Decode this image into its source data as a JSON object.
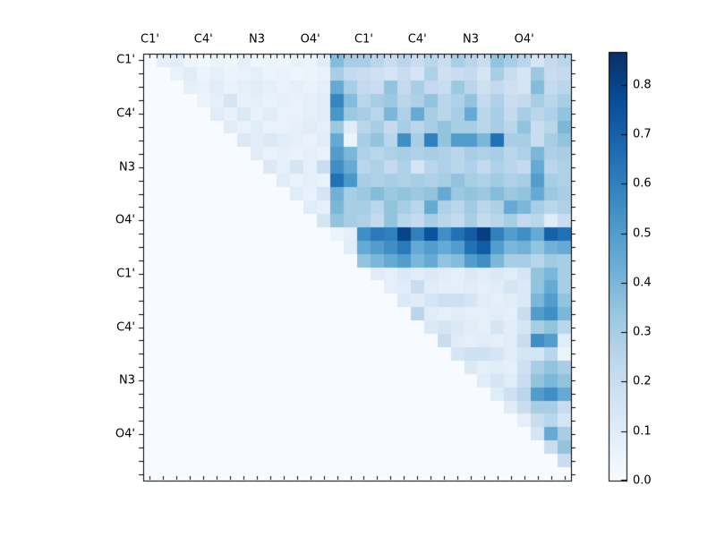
{
  "figure": {
    "background": "#ffffff"
  },
  "chart_data": {
    "type": "heatmap",
    "title": "",
    "xlabel": "",
    "ylabel": "",
    "colormap": "Blues",
    "grid": false,
    "size": 32,
    "triangular": "upper",
    "x_tick_labels": [
      "C1'",
      "C4'",
      "N3",
      "O4'",
      "C1'",
      "C4'",
      "N3",
      "O4'"
    ],
    "x_tick_cells": [
      0,
      4,
      8,
      12,
      16,
      20,
      24,
      28
    ],
    "y_tick_labels": [
      "C1'",
      "C4'",
      "N3",
      "O4'",
      "C1'",
      "C4'",
      "N3",
      "O4'"
    ],
    "y_tick_cells": [
      0,
      4,
      8,
      12,
      16,
      20,
      24,
      28
    ],
    "colorbar": {
      "min": 0.0,
      "max": 0.8666,
      "tick_values": [
        0.0,
        0.1,
        0.2,
        0.3,
        0.4,
        0.5,
        0.6,
        0.7,
        0.8
      ],
      "tick_labels": [
        "0.0",
        "0.1",
        "0.2",
        "0.3",
        "0.4",
        "0.5",
        "0.6",
        "0.7",
        "0.8"
      ],
      "position": "right"
    },
    "matrix": [
      [
        0,
        0.08,
        0.1,
        0.04,
        0.03,
        0.05,
        0.04,
        0.08,
        0.04,
        0.05,
        0.04,
        0.07,
        0.05,
        0.1,
        0.38,
        0.3,
        0.3,
        0.25,
        0.2,
        0.25,
        0.2,
        0.25,
        0.2,
        0.3,
        0.25,
        0.2,
        0.35,
        0.3,
        0.25,
        0.15,
        0.22,
        0.25
      ],
      [
        0,
        0,
        0.06,
        0.1,
        0.05,
        0.08,
        0.05,
        0.06,
        0.08,
        0.05,
        0.06,
        0.04,
        0.05,
        0.06,
        0.3,
        0.22,
        0.2,
        0.18,
        0.15,
        0.2,
        0.15,
        0.28,
        0.18,
        0.2,
        0.22,
        0.15,
        0.3,
        0.2,
        0.15,
        0.33,
        0.2,
        0.22
      ],
      [
        0,
        0,
        0,
        0.08,
        0.06,
        0.1,
        0.06,
        0.08,
        0.1,
        0.08,
        0.06,
        0.08,
        0.06,
        0.08,
        0.45,
        0.3,
        0.22,
        0.2,
        0.35,
        0.22,
        0.3,
        0.22,
        0.2,
        0.33,
        0.25,
        0.18,
        0.22,
        0.18,
        0.15,
        0.38,
        0.22,
        0.25
      ],
      [
        0,
        0,
        0,
        0,
        0.05,
        0.08,
        0.15,
        0.06,
        0.08,
        0.06,
        0.08,
        0.06,
        0.08,
        0.1,
        0.58,
        0.38,
        0.25,
        0.3,
        0.33,
        0.25,
        0.28,
        0.35,
        0.25,
        0.28,
        0.35,
        0.22,
        0.28,
        0.2,
        0.22,
        0.3,
        0.25,
        0.3
      ],
      [
        0,
        0,
        0,
        0,
        0,
        0.1,
        0.06,
        0.12,
        0.06,
        0.1,
        0.06,
        0.06,
        0.08,
        0.1,
        0.52,
        0.33,
        0.3,
        0.25,
        0.4,
        0.28,
        0.45,
        0.3,
        0.25,
        0.3,
        0.45,
        0.25,
        0.3,
        0.22,
        0.3,
        0.25,
        0.28,
        0.35
      ],
      [
        0,
        0,
        0,
        0,
        0,
        0,
        0.1,
        0.06,
        0.1,
        0.06,
        0.06,
        0.08,
        0.1,
        0.08,
        0.33,
        0.1,
        0.25,
        0.3,
        0.22,
        0.3,
        0.25,
        0.3,
        0.35,
        0.3,
        0.3,
        0.25,
        0.3,
        0.25,
        0.35,
        0.2,
        0.25,
        0.4
      ],
      [
        0,
        0,
        0,
        0,
        0,
        0,
        0,
        0.12,
        0.1,
        0.12,
        0.1,
        0.08,
        0.06,
        0.1,
        0.45,
        0.05,
        0.3,
        0.35,
        0.25,
        0.55,
        0.3,
        0.6,
        0.35,
        0.5,
        0.5,
        0.4,
        0.65,
        0.3,
        0.3,
        0.2,
        0.3,
        0.35
      ],
      [
        0,
        0,
        0,
        0,
        0,
        0,
        0,
        0,
        0.1,
        0.06,
        0.08,
        0.06,
        0.08,
        0.06,
        0.5,
        0.4,
        0.28,
        0.25,
        0.28,
        0.3,
        0.28,
        0.3,
        0.28,
        0.25,
        0.3,
        0.28,
        0.3,
        0.25,
        0.28,
        0.4,
        0.28,
        0.3
      ],
      [
        0,
        0,
        0,
        0,
        0,
        0,
        0,
        0,
        0,
        0.12,
        0.08,
        0.15,
        0.08,
        0.2,
        0.55,
        0.45,
        0.25,
        0.28,
        0.22,
        0.28,
        0.15,
        0.25,
        0.28,
        0.25,
        0.28,
        0.22,
        0.28,
        0.25,
        0.22,
        0.45,
        0.25,
        0.28
      ],
      [
        0,
        0,
        0,
        0,
        0,
        0,
        0,
        0,
        0,
        0,
        0.1,
        0.06,
        0.08,
        0.06,
        0.65,
        0.52,
        0.3,
        0.28,
        0.3,
        0.28,
        0.3,
        0.28,
        0.3,
        0.35,
        0.3,
        0.28,
        0.32,
        0.28,
        0.3,
        0.5,
        0.3,
        0.28
      ],
      [
        0,
        0,
        0,
        0,
        0,
        0,
        0,
        0,
        0,
        0,
        0,
        0.1,
        0.06,
        0.15,
        0.42,
        0.3,
        0.33,
        0.38,
        0.33,
        0.35,
        0.33,
        0.35,
        0.45,
        0.33,
        0.35,
        0.33,
        0.38,
        0.33,
        0.35,
        0.45,
        0.33,
        0.3
      ],
      [
        0,
        0,
        0,
        0,
        0,
        0,
        0,
        0,
        0,
        0,
        0,
        0,
        0.1,
        0.08,
        0.4,
        0.3,
        0.3,
        0.25,
        0.35,
        0.3,
        0.25,
        0.45,
        0.28,
        0.25,
        0.32,
        0.25,
        0.28,
        0.45,
        0.4,
        0.3,
        0.25,
        0.28
      ],
      [
        0,
        0,
        0,
        0,
        0,
        0,
        0,
        0,
        0,
        0,
        0,
        0,
        0,
        0.15,
        0.35,
        0.3,
        0.28,
        0.22,
        0.35,
        0.25,
        0.22,
        0.3,
        0.25,
        0.22,
        0.3,
        0.22,
        0.25,
        0.3,
        0.22,
        0.25,
        0.1,
        0.2
      ],
      [
        0,
        0,
        0,
        0,
        0,
        0,
        0,
        0,
        0,
        0,
        0,
        0,
        0,
        0,
        0.05,
        0.08,
        0.55,
        0.62,
        0.6,
        0.8,
        0.6,
        0.75,
        0.55,
        0.65,
        0.72,
        0.82,
        0.6,
        0.5,
        0.55,
        0.45,
        0.7,
        0.65
      ],
      [
        0,
        0,
        0,
        0,
        0,
        0,
        0,
        0,
        0,
        0,
        0,
        0,
        0,
        0,
        0,
        0.1,
        0.45,
        0.5,
        0.55,
        0.62,
        0.45,
        0.5,
        0.45,
        0.5,
        0.65,
        0.72,
        0.5,
        0.4,
        0.42,
        0.35,
        0.42,
        0.45
      ],
      [
        0,
        0,
        0,
        0,
        0,
        0,
        0,
        0,
        0,
        0,
        0,
        0,
        0,
        0,
        0,
        0,
        0.35,
        0.4,
        0.45,
        0.5,
        0.4,
        0.45,
        0.35,
        0.38,
        0.5,
        0.55,
        0.4,
        0.3,
        0.3,
        0.25,
        0.32,
        0.3
      ],
      [
        0,
        0,
        0,
        0,
        0,
        0,
        0,
        0,
        0,
        0,
        0,
        0,
        0,
        0,
        0,
        0,
        0,
        0.1,
        0.08,
        0.12,
        0.1,
        0.12,
        0.1,
        0.08,
        0.12,
        0.1,
        0.12,
        0.1,
        0.15,
        0.35,
        0.4,
        0.3
      ],
      [
        0,
        0,
        0,
        0,
        0,
        0,
        0,
        0,
        0,
        0,
        0,
        0,
        0,
        0,
        0,
        0,
        0,
        0,
        0.08,
        0.1,
        0.2,
        0.1,
        0.08,
        0.08,
        0.1,
        0.08,
        0.1,
        0.15,
        0.12,
        0.35,
        0.45,
        0.3
      ],
      [
        0,
        0,
        0,
        0,
        0,
        0,
        0,
        0,
        0,
        0,
        0,
        0,
        0,
        0,
        0,
        0,
        0,
        0,
        0,
        0.12,
        0.1,
        0.15,
        0.18,
        0.18,
        0.15,
        0.1,
        0.08,
        0.1,
        0.12,
        0.4,
        0.5,
        0.35
      ],
      [
        0,
        0,
        0,
        0,
        0,
        0,
        0,
        0,
        0,
        0,
        0,
        0,
        0,
        0,
        0,
        0,
        0,
        0,
        0,
        0,
        0.25,
        0.1,
        0.08,
        0.1,
        0.08,
        0.08,
        0.1,
        0.08,
        0.2,
        0.5,
        0.55,
        0.4
      ],
      [
        0,
        0,
        0,
        0,
        0,
        0,
        0,
        0,
        0,
        0,
        0,
        0,
        0,
        0,
        0,
        0,
        0,
        0,
        0,
        0,
        0,
        0.12,
        0.15,
        0.12,
        0.1,
        0.08,
        0.15,
        0.1,
        0.15,
        0.3,
        0.35,
        0.25
      ],
      [
        0,
        0,
        0,
        0,
        0,
        0,
        0,
        0,
        0,
        0,
        0,
        0,
        0,
        0,
        0,
        0,
        0,
        0,
        0,
        0,
        0,
        0,
        0.2,
        0.1,
        0.08,
        0.1,
        0.08,
        0.1,
        0.2,
        0.55,
        0.5,
        0.1
      ],
      [
        0,
        0,
        0,
        0,
        0,
        0,
        0,
        0,
        0,
        0,
        0,
        0,
        0,
        0,
        0,
        0,
        0,
        0,
        0,
        0,
        0,
        0,
        0,
        0.15,
        0.18,
        0.18,
        0.15,
        0.1,
        0.15,
        0.15,
        0.25,
        0.05
      ],
      [
        0,
        0,
        0,
        0,
        0,
        0,
        0,
        0,
        0,
        0,
        0,
        0,
        0,
        0,
        0,
        0,
        0,
        0,
        0,
        0,
        0,
        0,
        0,
        0,
        0.12,
        0.08,
        0.1,
        0.08,
        0.18,
        0.3,
        0.35,
        0.3
      ],
      [
        0,
        0,
        0,
        0,
        0,
        0,
        0,
        0,
        0,
        0,
        0,
        0,
        0,
        0,
        0,
        0,
        0,
        0,
        0,
        0,
        0,
        0,
        0,
        0,
        0,
        0.1,
        0.15,
        0.1,
        0.2,
        0.35,
        0.4,
        0.35
      ],
      [
        0,
        0,
        0,
        0,
        0,
        0,
        0,
        0,
        0,
        0,
        0,
        0,
        0,
        0,
        0,
        0,
        0,
        0,
        0,
        0,
        0,
        0,
        0,
        0,
        0,
        0,
        0.1,
        0.18,
        0.25,
        0.5,
        0.55,
        0.45
      ],
      [
        0,
        0,
        0,
        0,
        0,
        0,
        0,
        0,
        0,
        0,
        0,
        0,
        0,
        0,
        0,
        0,
        0,
        0,
        0,
        0,
        0,
        0,
        0,
        0,
        0,
        0,
        0,
        0.1,
        0.2,
        0.3,
        0.3,
        0.2
      ],
      [
        0,
        0,
        0,
        0,
        0,
        0,
        0,
        0,
        0,
        0,
        0,
        0,
        0,
        0,
        0,
        0,
        0,
        0,
        0,
        0,
        0,
        0,
        0,
        0,
        0,
        0,
        0,
        0,
        0.08,
        0.2,
        0.25,
        0.15
      ],
      [
        0,
        0,
        0,
        0,
        0,
        0,
        0,
        0,
        0,
        0,
        0,
        0,
        0,
        0,
        0,
        0,
        0,
        0,
        0,
        0,
        0,
        0,
        0,
        0,
        0,
        0,
        0,
        0,
        0,
        0.15,
        0.45,
        0.3
      ],
      [
        0,
        0,
        0,
        0,
        0,
        0,
        0,
        0,
        0,
        0,
        0,
        0,
        0,
        0,
        0,
        0,
        0,
        0,
        0,
        0,
        0,
        0,
        0,
        0,
        0,
        0,
        0,
        0,
        0,
        0,
        0.2,
        0.35
      ],
      [
        0,
        0,
        0,
        0,
        0,
        0,
        0,
        0,
        0,
        0,
        0,
        0,
        0,
        0,
        0,
        0,
        0,
        0,
        0,
        0,
        0,
        0,
        0,
        0,
        0,
        0,
        0,
        0,
        0,
        0,
        0,
        0.2
      ],
      [
        0,
        0,
        0,
        0,
        0,
        0,
        0,
        0,
        0,
        0,
        0,
        0,
        0,
        0,
        0,
        0,
        0,
        0,
        0,
        0,
        0,
        0,
        0,
        0,
        0,
        0,
        0,
        0,
        0,
        0,
        0,
        0
      ]
    ]
  }
}
